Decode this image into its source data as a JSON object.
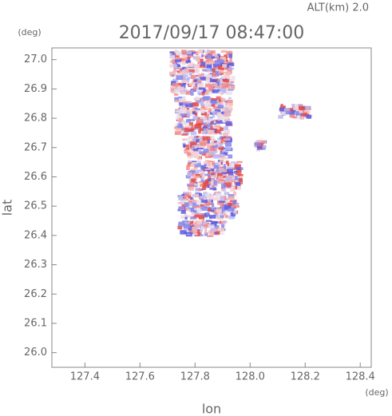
{
  "chart_data": {
    "type": "heatmap",
    "title": "2017/09/17 08:47:00",
    "subtitle": "ALT(km) 2.0",
    "y_unit": "(deg)",
    "x_unit": "(deg)",
    "y_label": "lat",
    "x_label": "lon",
    "xlim": [
      127.28,
      128.44
    ],
    "ylim": [
      25.95,
      27.04
    ],
    "xticks": [
      127.4,
      127.6,
      127.8,
      {
        "value": 128,
        "label": "128.0"
      },
      128.2,
      128.4
    ],
    "yticks": [
      {
        "value": 26,
        "label": "26.0"
      },
      26.1,
      26.2,
      26.3,
      26.4,
      26.5,
      26.6,
      26.7,
      26.8,
      26.9,
      {
        "value": 27,
        "label": "27.0"
      }
    ]
  }
}
